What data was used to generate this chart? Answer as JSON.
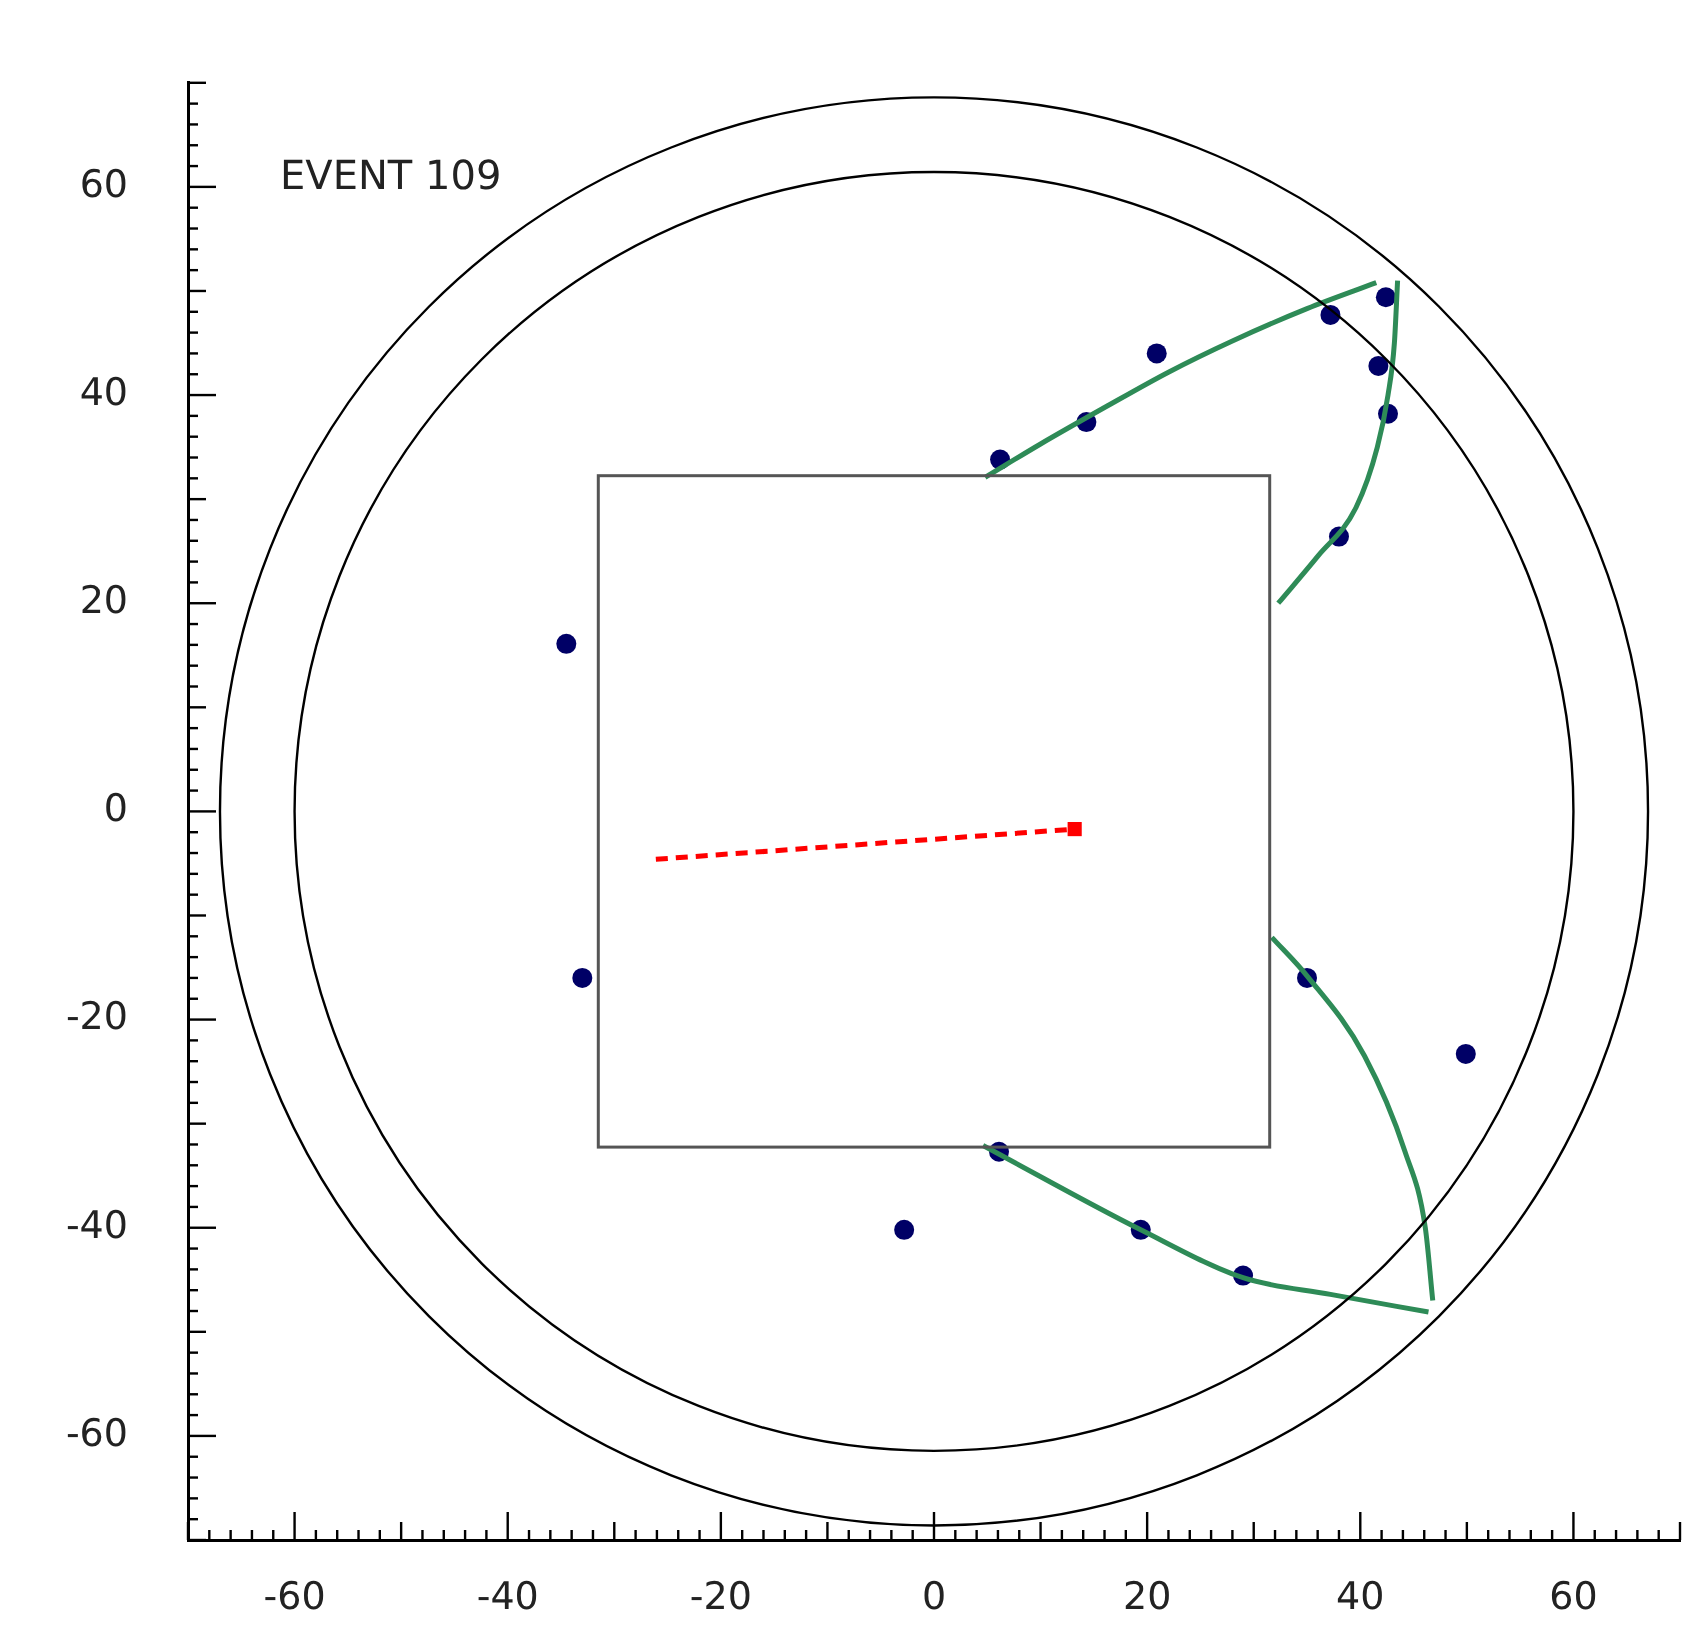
{
  "chart_data": {
    "type": "scatter",
    "annotations": [
      "EVENT 109"
    ],
    "xlim": [
      -70,
      70
    ],
    "ylim": [
      -70,
      70
    ],
    "xticks": [
      {
        "value": -70,
        "label": null
      },
      {
        "value": -68,
        "label": null
      },
      {
        "value": -66,
        "label": null
      },
      {
        "value": -64,
        "label": null
      },
      {
        "value": -62,
        "label": null
      },
      -60,
      {
        "value": -58,
        "label": null
      },
      {
        "value": -56,
        "label": null
      },
      {
        "value": -54,
        "label": null
      },
      {
        "value": -52,
        "label": null
      },
      {
        "value": -50,
        "label": null
      },
      {
        "value": -48,
        "label": null
      },
      {
        "value": -46,
        "label": null
      },
      {
        "value": -44,
        "label": null
      },
      {
        "value": -42,
        "label": null
      },
      -40,
      {
        "value": -38,
        "label": null
      },
      {
        "value": -36,
        "label": null
      },
      {
        "value": -34,
        "label": null
      },
      {
        "value": -32,
        "label": null
      },
      {
        "value": -30,
        "label": null
      },
      {
        "value": -28,
        "label": null
      },
      {
        "value": -26,
        "label": null
      },
      {
        "value": -24,
        "label": null
      },
      {
        "value": -22,
        "label": null
      },
      -20,
      {
        "value": -18,
        "label": null
      },
      {
        "value": -16,
        "label": null
      },
      {
        "value": -14,
        "label": null
      },
      {
        "value": -12,
        "label": null
      },
      {
        "value": -10,
        "label": null
      },
      {
        "value": -8,
        "label": null
      },
      {
        "value": -6,
        "label": null
      },
      {
        "value": -4,
        "label": null
      },
      {
        "value": -2,
        "label": null
      },
      0,
      {
        "value": 2,
        "label": null
      },
      {
        "value": 4,
        "label": null
      },
      {
        "value": 6,
        "label": null
      },
      {
        "value": 8,
        "label": null
      },
      {
        "value": 10,
        "label": null
      },
      {
        "value": 12,
        "label": null
      },
      {
        "value": 14,
        "label": null
      },
      {
        "value": 16,
        "label": null
      },
      {
        "value": 18,
        "label": null
      },
      20,
      {
        "value": 22,
        "label": null
      },
      {
        "value": 24,
        "label": null
      },
      {
        "value": 26,
        "label": null
      },
      {
        "value": 28,
        "label": null
      },
      {
        "value": 30,
        "label": null
      },
      {
        "value": 32,
        "label": null
      },
      {
        "value": 34,
        "label": null
      },
      {
        "value": 36,
        "label": null
      },
      {
        "value": 38,
        "label": null
      },
      40,
      {
        "value": 42,
        "label": null
      },
      {
        "value": 44,
        "label": null
      },
      {
        "value": 46,
        "label": null
      },
      {
        "value": 48,
        "label": null
      },
      {
        "value": 50,
        "label": null
      },
      {
        "value": 52,
        "label": null
      },
      {
        "value": 54,
        "label": null
      },
      {
        "value": 56,
        "label": null
      },
      {
        "value": 58,
        "label": null
      },
      60,
      {
        "value": 62,
        "label": null
      },
      {
        "value": 64,
        "label": null
      },
      {
        "value": 66,
        "label": null
      },
      {
        "value": 68,
        "label": null
      },
      {
        "value": 70,
        "label": null
      }
    ],
    "yticks": [
      {
        "value": -70,
        "label": null
      },
      {
        "value": -68,
        "label": null
      },
      {
        "value": -66,
        "label": null
      },
      {
        "value": -64,
        "label": null
      },
      {
        "value": -62,
        "label": null
      },
      -60,
      {
        "value": -58,
        "label": null
      },
      {
        "value": -56,
        "label": null
      },
      {
        "value": -54,
        "label": null
      },
      {
        "value": -52,
        "label": null
      },
      {
        "value": -50,
        "label": null
      },
      {
        "value": -48,
        "label": null
      },
      {
        "value": -46,
        "label": null
      },
      {
        "value": -44,
        "label": null
      },
      {
        "value": -42,
        "label": null
      },
      -40,
      {
        "value": -38,
        "label": null
      },
      {
        "value": -36,
        "label": null
      },
      {
        "value": -34,
        "label": null
      },
      {
        "value": -32,
        "label": null
      },
      {
        "value": -30,
        "label": null
      },
      {
        "value": -28,
        "label": null
      },
      {
        "value": -26,
        "label": null
      },
      {
        "value": -24,
        "label": null
      },
      {
        "value": -22,
        "label": null
      },
      -20,
      {
        "value": -18,
        "label": null
      },
      {
        "value": -16,
        "label": null
      },
      {
        "value": -14,
        "label": null
      },
      {
        "value": -12,
        "label": null
      },
      {
        "value": -10,
        "label": null
      },
      {
        "value": -8,
        "label": null
      },
      {
        "value": -6,
        "label": null
      },
      {
        "value": -4,
        "label": null
      },
      {
        "value": -2,
        "label": null
      },
      0,
      {
        "value": 2,
        "label": null
      },
      {
        "value": 4,
        "label": null
      },
      {
        "value": 6,
        "label": null
      },
      {
        "value": 8,
        "label": null
      },
      {
        "value": 10,
        "label": null
      },
      {
        "value": 12,
        "label": null
      },
      {
        "value": 14,
        "label": null
      },
      {
        "value": 16,
        "label": null
      },
      {
        "value": 18,
        "label": null
      },
      20,
      {
        "value": 22,
        "label": null
      },
      {
        "value": 24,
        "label": null
      },
      {
        "value": 26,
        "label": null
      },
      {
        "value": 28,
        "label": null
      },
      {
        "value": 30,
        "label": null
      },
      {
        "value": 32,
        "label": null
      },
      {
        "value": 34,
        "label": null
      },
      {
        "value": 36,
        "label": null
      },
      {
        "value": 38,
        "label": null
      },
      40,
      {
        "value": 42,
        "label": null
      },
      {
        "value": 44,
        "label": null
      },
      {
        "value": 46,
        "label": null
      },
      {
        "value": 48,
        "label": null
      },
      {
        "value": 50,
        "label": null
      },
      {
        "value": 52,
        "label": null
      },
      {
        "value": 54,
        "label": null
      },
      {
        "value": 56,
        "label": null
      },
      {
        "value": 58,
        "label": null
      },
      60,
      {
        "value": 62,
        "label": null
      },
      {
        "value": 64,
        "label": null
      },
      {
        "value": 66,
        "label": null
      },
      {
        "value": 68,
        "label": null
      },
      {
        "value": 70,
        "label": null
      }
    ],
    "grid": false,
    "legend": false,
    "tick_labels": "xy",
    "series": [
      {
        "type": "line",
        "color": "#2e8b57",
        "marker": "none",
        "x": [
          4.8,
          10,
          16,
          22,
          28,
          35,
          41.5
        ],
        "values": [
          32.1,
          35.3,
          38.8,
          42.2,
          45.2,
          48.3,
          50.8
        ]
      },
      {
        "type": "line",
        "color": "#2e8b57",
        "marker": "none",
        "x": [
          32.3,
          36,
          39.6,
          41.6,
          42.6,
          43.2,
          43.5
        ],
        "values": [
          20,
          24.5,
          29.2,
          35,
          40,
          45,
          51
        ]
      },
      {
        "type": "line",
        "color": "#2e8b57",
        "marker": "none",
        "x": [
          31.7,
          35,
          40.4,
          44.2,
          46.1,
          46.8
        ],
        "values": [
          -12.1,
          -15.8,
          -23.5,
          -32.7,
          -40,
          -47
        ]
      },
      {
        "type": "line",
        "color": "#2e8b57",
        "marker": "none",
        "x": [
          4.6,
          19.4,
          29,
          37.2,
          46.4
        ],
        "values": [
          -32.1,
          -40.2,
          -44.8,
          -46.4,
          -48.1
        ]
      },
      {
        "type": "scatter",
        "color": "#000066",
        "marker": "circle",
        "x": [
          20.9,
          14.3,
          6.2,
          37.2,
          42.4,
          41.7,
          42.6,
          38,
          -34.5,
          -33,
          35,
          49.9,
          6.1,
          19.4,
          29,
          -2.8
        ],
        "values": [
          44,
          37.4,
          33.8,
          47.7,
          49.4,
          42.8,
          38.2,
          26.4,
          16.1,
          -16,
          -16,
          -23.3,
          -32.7,
          -40.2,
          -44.6,
          -40.2
        ]
      },
      {
        "type": "line",
        "color": "#ff0000",
        "marker": "none",
        "line_style": "dashed",
        "x": [
          -26.1,
          13.2
        ],
        "values": [
          -4.6,
          -1.7
        ]
      },
      {
        "type": "scatter",
        "color": "#ff0000",
        "marker": "square",
        "x": [
          13.2
        ],
        "values": [
          -1.7
        ]
      }
    ]
  }
}
